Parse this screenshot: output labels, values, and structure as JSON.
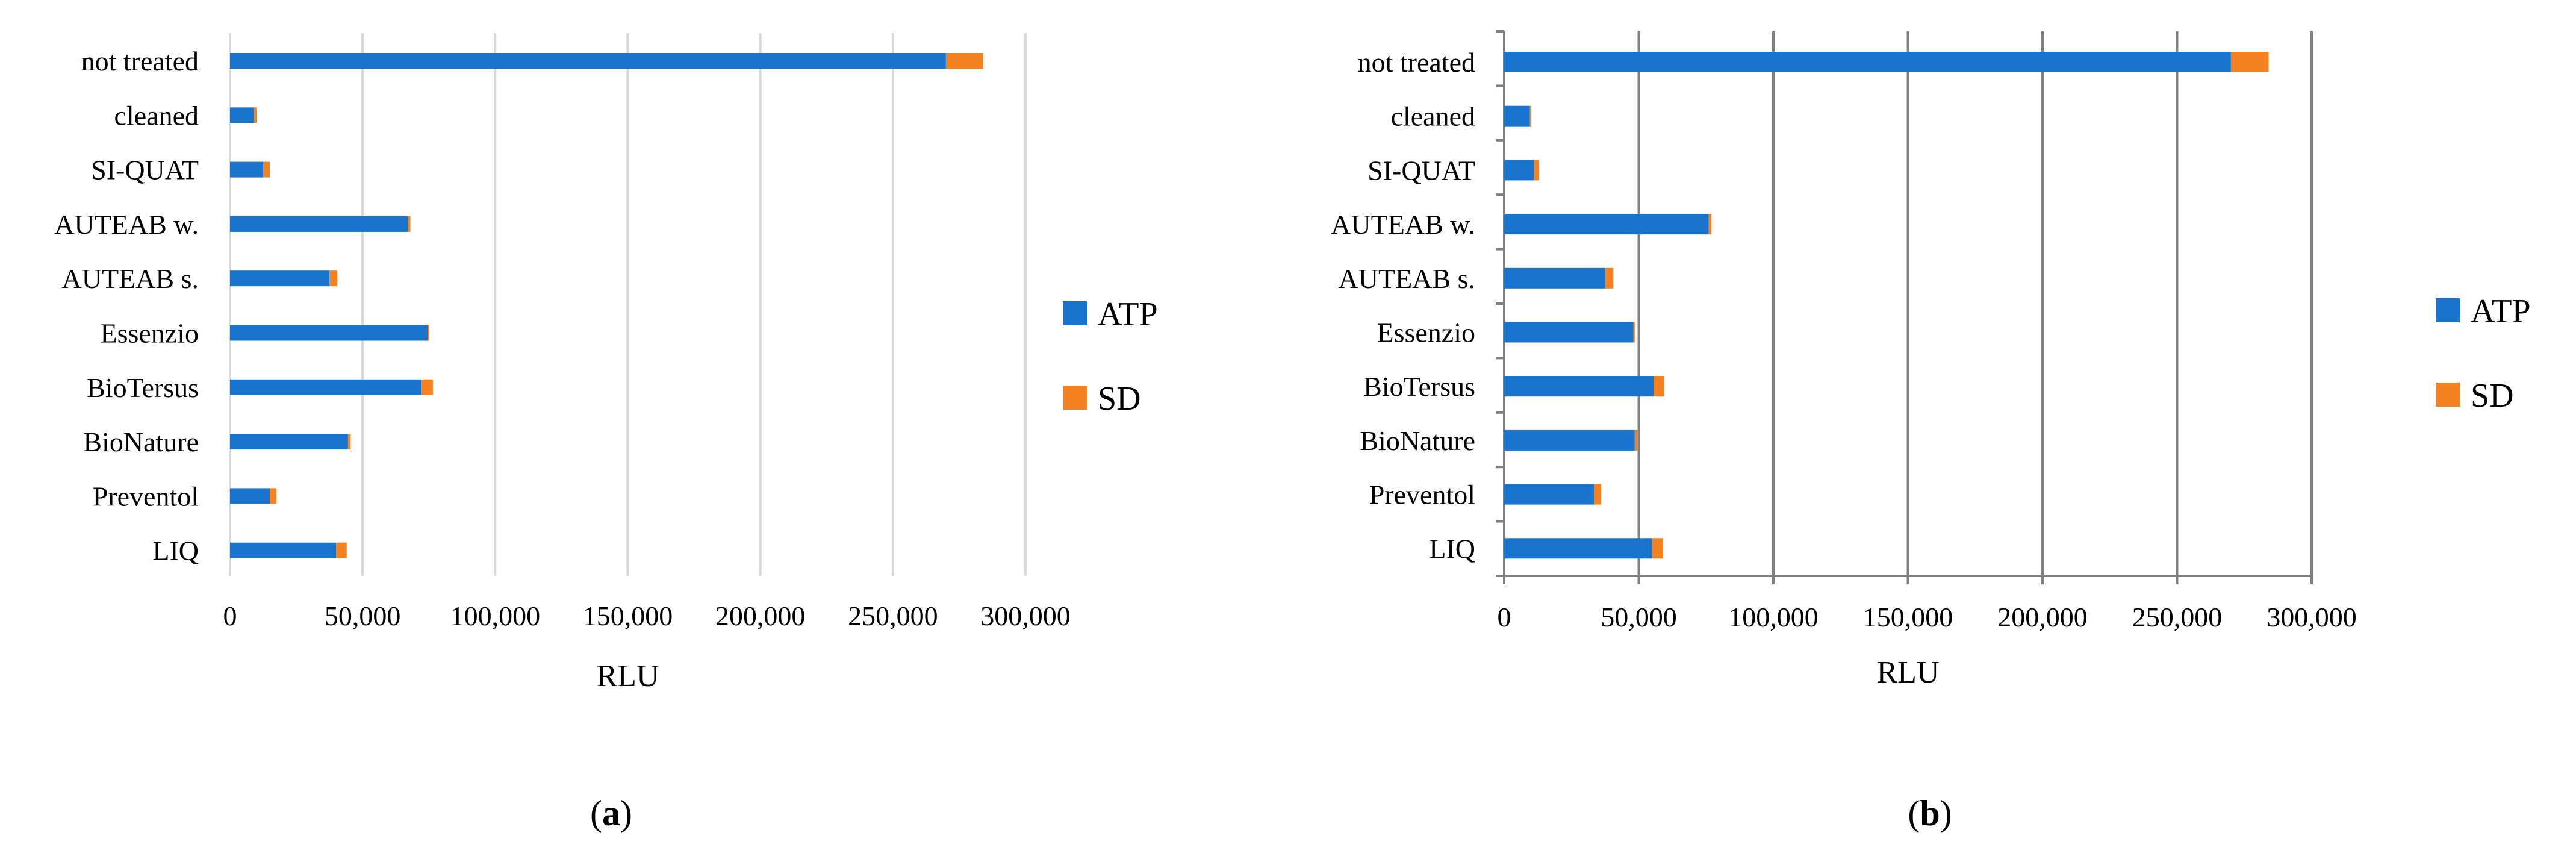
{
  "colors": {
    "atp": "#1874CD",
    "sd": "#F58220",
    "grid_a": "#D9D9D9",
    "grid_b": "#7F7F7F"
  },
  "chart_data": [
    {
      "type": "bar",
      "orientation": "horizontal",
      "stacked": true,
      "panel_label": "(a)",
      "panel_letter": "a",
      "title": "",
      "xlabel": "RLU",
      "ylabel": "",
      "xlim": [
        0,
        300000
      ],
      "xticks": [
        0,
        50000,
        100000,
        150000,
        200000,
        250000,
        300000
      ],
      "xtick_labels": [
        "0",
        "50,000",
        "100,000",
        "150,000",
        "200,000",
        "250,000",
        "300,000"
      ],
      "grid": true,
      "legend_position": "right",
      "categories": [
        "not treated",
        "cleaned",
        "SI-QUAT",
        "AUTEAB w.",
        "AUTEAB s.",
        "Essenzio",
        "BioTersus",
        "BioNature",
        "Preventol",
        "LIQ"
      ],
      "series": [
        {
          "name": "ATP",
          "values": [
            270000,
            9000,
            12500,
            67000,
            37500,
            74500,
            72000,
            44500,
            15000,
            40000
          ]
        },
        {
          "name": "SD",
          "values": [
            14000,
            1000,
            2500,
            1000,
            3000,
            500,
            4500,
            1000,
            2500,
            4000
          ]
        }
      ]
    },
    {
      "type": "bar",
      "orientation": "horizontal",
      "stacked": true,
      "panel_label": "(b)",
      "panel_letter": "b",
      "title": "",
      "xlabel": "RLU",
      "ylabel": "",
      "xlim": [
        0,
        300000
      ],
      "xticks": [
        0,
        50000,
        100000,
        150000,
        200000,
        250000,
        300000
      ],
      "xtick_labels": [
        "0",
        "50,000",
        "100,000",
        "150,000",
        "200,000",
        "250,000",
        "300,000"
      ],
      "grid": true,
      "legend_position": "right",
      "categories": [
        "not treated",
        "cleaned",
        "SI-QUAT",
        "AUTEAB w.",
        "AUTEAB s.",
        "Essenzio",
        "BioTersus",
        "BioNature",
        "Preventol",
        "LIQ"
      ],
      "series": [
        {
          "name": "ATP",
          "values": [
            270000,
            9500,
            11000,
            76000,
            37500,
            48000,
            55500,
            48500,
            33500,
            55000
          ]
        },
        {
          "name": "SD",
          "values": [
            14000,
            500,
            2000,
            1000,
            3000,
            500,
            4000,
            1000,
            2500,
            4000
          ]
        }
      ]
    }
  ]
}
